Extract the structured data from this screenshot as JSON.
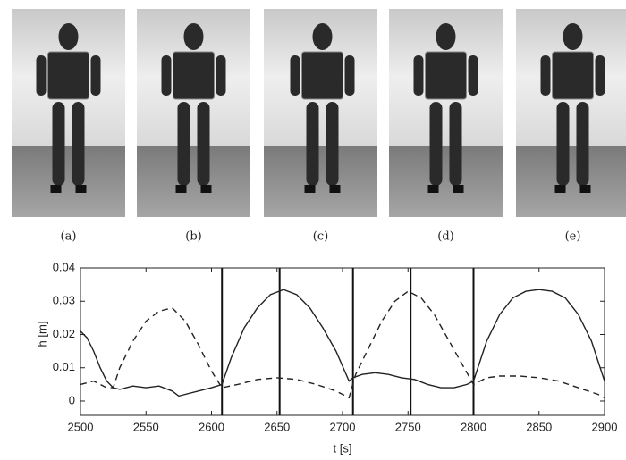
{
  "panels": {
    "labels": [
      "(a)",
      "(b)",
      "(c)",
      "(d)",
      "(e)"
    ]
  },
  "chart_data": {
    "type": "line",
    "xlabel": "t [s]",
    "ylabel": "h [m]",
    "xlim": [
      2500,
      2900
    ],
    "xticks": [
      2500,
      2550,
      2600,
      2650,
      2700,
      2750,
      2800,
      2850,
      2900
    ],
    "ylim": [
      -0.0043,
      0.04
    ],
    "yticks": [
      0,
      0.01,
      0.02,
      0.03,
      0.04
    ],
    "vlines": [
      2608,
      2652,
      2708,
      2752,
      2800
    ],
    "series": [
      {
        "color": "#222222",
        "dash": false,
        "x": [
          2500,
          2505,
          2510,
          2515,
          2520,
          2525,
          2530,
          2540,
          2550,
          2560,
          2570,
          2575,
          2580,
          2590,
          2600,
          2608,
          2615,
          2625,
          2635,
          2645,
          2655,
          2665,
          2675,
          2685,
          2695,
          2705,
          2708,
          2715,
          2725,
          2735,
          2745,
          2755,
          2765,
          2775,
          2785,
          2795,
          2800,
          2810,
          2820,
          2830,
          2840,
          2850,
          2860,
          2870,
          2880,
          2890,
          2900
        ],
        "values": [
          0.021,
          0.019,
          0.015,
          0.01,
          0.006,
          0.004,
          0.0035,
          0.0045,
          0.004,
          0.0045,
          0.003,
          0.0015,
          0.002,
          0.003,
          0.004,
          0.005,
          0.013,
          0.022,
          0.028,
          0.032,
          0.0335,
          0.032,
          0.028,
          0.022,
          0.015,
          0.006,
          0.007,
          0.008,
          0.0085,
          0.008,
          0.007,
          0.0065,
          0.005,
          0.004,
          0.004,
          0.005,
          0.006,
          0.018,
          0.026,
          0.031,
          0.033,
          0.0335,
          0.033,
          0.031,
          0.026,
          0.018,
          0.006
        ]
      },
      {
        "color": "#222222",
        "dash": true,
        "x": [
          2500,
          2510,
          2520,
          2525,
          2530,
          2540,
          2550,
          2560,
          2570,
          2580,
          2590,
          2600,
          2608,
          2620,
          2635,
          2650,
          2665,
          2680,
          2695,
          2705,
          2710,
          2720,
          2730,
          2740,
          2750,
          2760,
          2770,
          2780,
          2790,
          2800,
          2810,
          2820,
          2835,
          2850,
          2865,
          2880,
          2895,
          2900
        ],
        "values": [
          0.005,
          0.006,
          0.004,
          0.004,
          0.01,
          0.018,
          0.024,
          0.027,
          0.028,
          0.024,
          0.017,
          0.009,
          0.004,
          0.005,
          0.0065,
          0.007,
          0.0065,
          0.005,
          0.003,
          0.001,
          0.008,
          0.016,
          0.024,
          0.03,
          0.033,
          0.031,
          0.026,
          0.019,
          0.012,
          0.005,
          0.007,
          0.0075,
          0.0075,
          0.007,
          0.006,
          0.004,
          0.002,
          0.001
        ]
      }
    ]
  }
}
